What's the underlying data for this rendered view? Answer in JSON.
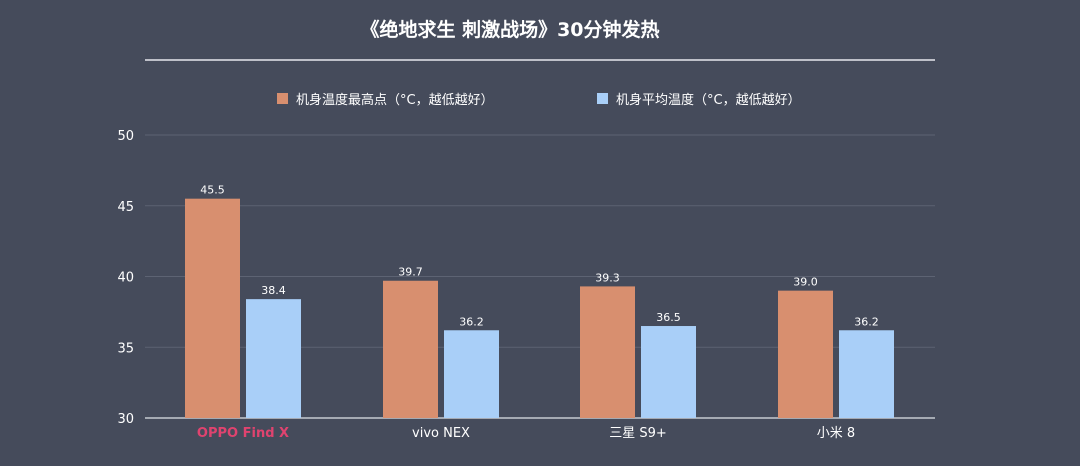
{
  "chart_data": {
    "type": "bar",
    "title": "《绝地求生 刺激战场》30分钟发热",
    "categories": [
      "OPPO Find X",
      "vivo NEX",
      "三星 S9+",
      "小米 8"
    ],
    "series": [
      {
        "name": "机身温度最高点（°C，越低越好）",
        "values": [
          45.5,
          39.7,
          39.3,
          39.0
        ],
        "color": "#d88f6f"
      },
      {
        "name": "机身平均温度（°C，越低越好）",
        "values": [
          38.4,
          36.2,
          36.5,
          36.2
        ],
        "color": "#a9cff8"
      }
    ],
    "value_labels": [
      [
        "45.5",
        "39.7",
        "39.3",
        "39.0"
      ],
      [
        "38.4",
        "36.2",
        "36.5",
        "36.2"
      ]
    ],
    "ylim": [
      30,
      50
    ],
    "yticks": [
      30,
      35,
      40,
      45,
      50
    ],
    "ytick_labels": [
      "30",
      "35",
      "40",
      "45",
      "50"
    ],
    "grid": true,
    "legend_position": "top-center",
    "highlight_category_color": "#e0436f",
    "xlabel": "",
    "ylabel": ""
  }
}
